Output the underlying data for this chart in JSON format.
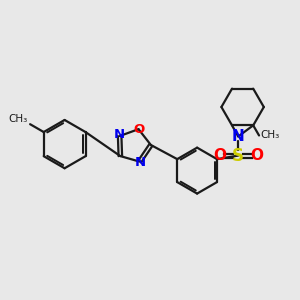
{
  "background_color": "#e8e8e8",
  "bond_color": "#1a1a1a",
  "N_color": "#0000ee",
  "O_color": "#ff0000",
  "S_color": "#cccc00",
  "bond_width": 1.6,
  "figsize": [
    3.0,
    3.0
  ],
  "dpi": 100,
  "font_size": 9.5,
  "xlim": [
    0,
    10
  ],
  "ylim": [
    0,
    10
  ]
}
